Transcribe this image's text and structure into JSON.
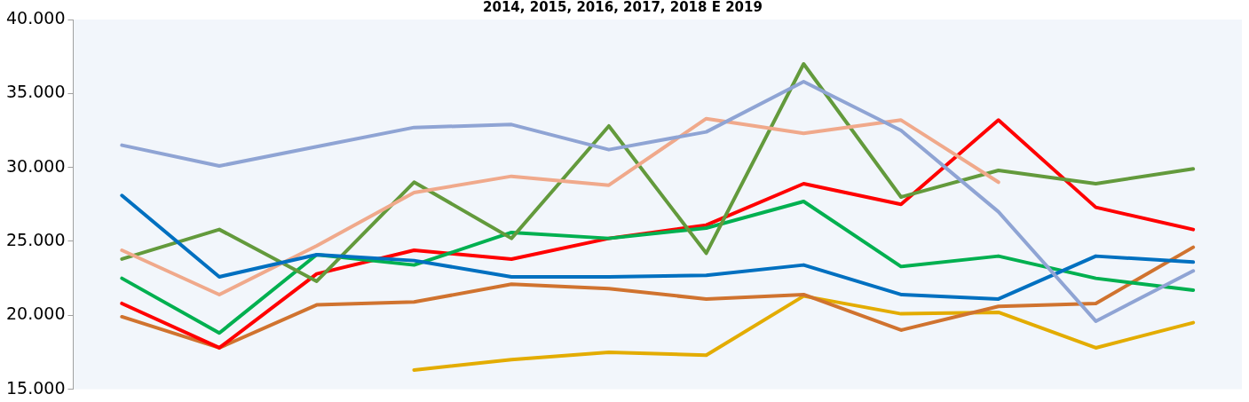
{
  "chart_data": {
    "type": "line",
    "title": "2014, 2015, 2016, 2017, 2018 E 2019",
    "categories": [
      null,
      null,
      null,
      null,
      null,
      null,
      null,
      null,
      null,
      null,
      null,
      null
    ],
    "ylim": [
      15000,
      40000
    ],
    "yticks": [
      {
        "value": 15000,
        "label": "15.000"
      },
      {
        "value": 20000,
        "label": "20.000"
      },
      {
        "value": 25000,
        "label": "25.000"
      },
      {
        "value": 30000,
        "label": "30.000"
      },
      {
        "value": 35000,
        "label": "35.000"
      },
      {
        "value": 40000,
        "label": "40.000"
      }
    ],
    "grid": false,
    "legend": false,
    "marker": "none",
    "line_style": "solid",
    "tick_labels": "y",
    "series": [
      {
        "color": "#8fa4d4",
        "values": [
          31500,
          30100,
          31400,
          32700,
          32900,
          31200,
          32400,
          35800,
          32500,
          27000,
          19600,
          23000
        ]
      },
      {
        "color": "#0070c0",
        "values": [
          28100,
          22600,
          24100,
          23700,
          22600,
          22600,
          22700,
          23400,
          21400,
          21100,
          24000,
          23600
        ]
      },
      {
        "color": "#f0a98b",
        "values": [
          24400,
          21400,
          24700,
          28300,
          29400,
          28800,
          33300,
          32300,
          33200,
          29000,
          null,
          null
        ]
      },
      {
        "color": "#639a3c",
        "values": [
          23800,
          25800,
          22300,
          29000,
          25200,
          32800,
          24200,
          37000,
          28000,
          29800,
          28900,
          29900
        ]
      },
      {
        "color": "#00b050",
        "values": [
          22500,
          18800,
          24100,
          23400,
          25600,
          25200,
          25900,
          27700,
          23300,
          24000,
          22500,
          21700
        ]
      },
      {
        "color": "#ff0000",
        "values": [
          20800,
          17800,
          22800,
          24400,
          23800,
          25200,
          26100,
          28900,
          27500,
          33200,
          27300,
          25800
        ]
      },
      {
        "color": "#d0732f",
        "values": [
          19900,
          17800,
          20700,
          20900,
          22100,
          21800,
          21100,
          21400,
          19000,
          20600,
          20800,
          24600
        ]
      },
      {
        "color": "#e3ac00",
        "values": [
          null,
          null,
          null,
          16300,
          17000,
          17500,
          17300,
          21300,
          20100,
          20200,
          17800,
          19500
        ]
      }
    ]
  }
}
